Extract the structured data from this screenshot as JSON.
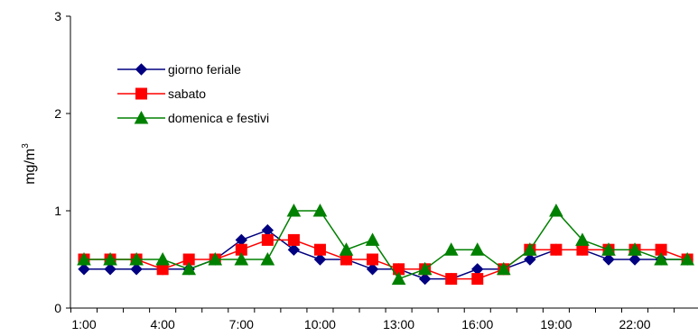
{
  "chart_data": {
    "type": "line",
    "title": "",
    "xlabel": "",
    "ylabel": "mg/m",
    "ylabel_sup": "3",
    "ylim": [
      0,
      3
    ],
    "yticks": [
      "0",
      "1",
      "2",
      "3"
    ],
    "x": [
      1,
      2,
      3,
      4,
      5,
      6,
      7,
      8,
      9,
      10,
      11,
      12,
      13,
      14,
      15,
      16,
      17,
      18,
      19,
      20,
      21,
      22,
      23,
      24
    ],
    "x_tick_labels": [
      "1:00",
      "4:00",
      "7:00",
      "10:00",
      "13:00",
      "16:00",
      "19:00",
      "22:00"
    ],
    "legend_position": "top-left",
    "grid": false,
    "series": [
      {
        "name": "giorno feriale",
        "color": "#000080",
        "marker": "diamond",
        "values": [
          0.4,
          0.4,
          0.4,
          0.4,
          0.4,
          0.5,
          0.7,
          0.8,
          0.6,
          0.5,
          0.5,
          0.4,
          0.4,
          0.3,
          0.3,
          0.4,
          0.4,
          0.5,
          0.6,
          0.6,
          0.5,
          0.5,
          0.5,
          0.5
        ]
      },
      {
        "name": "sabato",
        "color": "#ff0000",
        "marker": "square",
        "values": [
          0.5,
          0.5,
          0.5,
          0.4,
          0.5,
          0.5,
          0.6,
          0.7,
          0.7,
          0.6,
          0.5,
          0.5,
          0.4,
          0.4,
          0.3,
          0.3,
          0.4,
          0.6,
          0.6,
          0.6,
          0.6,
          0.6,
          0.6,
          0.5
        ]
      },
      {
        "name": "domenica e festivi",
        "color": "#008000",
        "marker": "triangle",
        "values": [
          0.5,
          0.5,
          0.5,
          0.5,
          0.4,
          0.5,
          0.5,
          0.5,
          1.0,
          1.0,
          0.6,
          0.7,
          0.3,
          0.4,
          0.6,
          0.6,
          0.4,
          0.6,
          1.0,
          0.7,
          0.6,
          0.6,
          0.5,
          0.5
        ]
      }
    ]
  }
}
